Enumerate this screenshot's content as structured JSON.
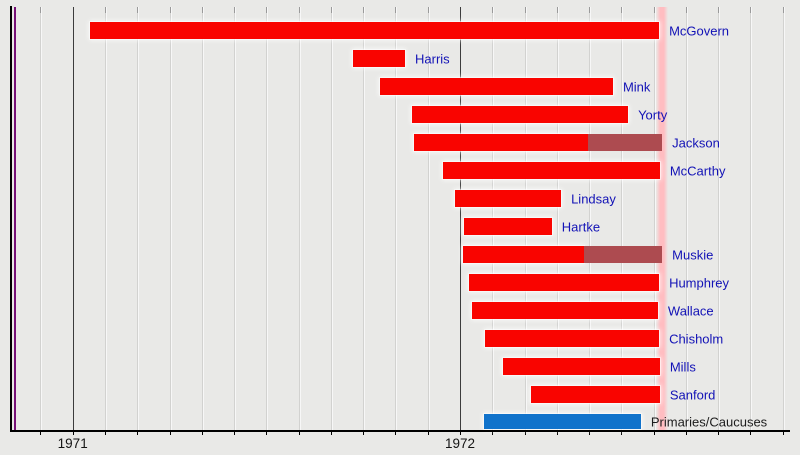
{
  "chart_data": {
    "type": "timeline",
    "title": "",
    "x_axis": {
      "unit": "year",
      "min": 1970.84,
      "max": 1972.85,
      "grid": true,
      "gridline_interval": "monthly",
      "ticks": [
        {
          "value": 1971,
          "label": "1971"
        },
        {
          "value": 1972,
          "label": "1972"
        }
      ]
    },
    "series": [
      {
        "label": "McGovern",
        "start": 1971.045,
        "end": 1972.514,
        "kind": "candidate"
      },
      {
        "label": "Harris",
        "start": 1971.724,
        "end": 1971.858,
        "kind": "candidate"
      },
      {
        "label": "Mink",
        "start": 1971.793,
        "end": 1972.395,
        "kind": "candidate"
      },
      {
        "label": "Yorty",
        "start": 1971.875,
        "end": 1972.434,
        "kind": "candidate"
      },
      {
        "label": "Jackson",
        "start": 1971.881,
        "fade_from": 1972.33,
        "end": 1972.522,
        "kind": "candidate"
      },
      {
        "label": "McCarthy",
        "start": 1971.956,
        "end": 1972.516,
        "kind": "candidate"
      },
      {
        "label": "Lindsay",
        "start": 1971.987,
        "end": 1972.261,
        "kind": "candidate"
      },
      {
        "label": "Hartke",
        "start": 1972.01,
        "end": 1972.237,
        "kind": "candidate"
      },
      {
        "label": "Muskie",
        "start": 1972.008,
        "fade_from": 1972.32,
        "end": 1972.522,
        "kind": "candidate"
      },
      {
        "label": "Humphrey",
        "start": 1972.023,
        "end": 1972.514,
        "kind": "candidate"
      },
      {
        "label": "Wallace",
        "start": 1972.031,
        "end": 1972.511,
        "kind": "candidate"
      },
      {
        "label": "Chisholm",
        "start": 1972.064,
        "end": 1972.514,
        "kind": "candidate"
      },
      {
        "label": "Mills",
        "start": 1972.111,
        "end": 1972.516,
        "kind": "candidate"
      },
      {
        "label": "Sanford",
        "start": 1972.183,
        "end": 1972.516,
        "kind": "candidate"
      },
      {
        "label": "Primaries/Caucuses",
        "start": 1972.062,
        "end": 1972.467,
        "kind": "event"
      }
    ],
    "markers": [
      {
        "name": "start-marker-line",
        "type": "line",
        "at": 1970.85,
        "color": "#760f76"
      },
      {
        "name": "convention-band",
        "type": "band",
        "from": 1972.507,
        "to": 1972.538,
        "color": "#ffbdc1"
      }
    ],
    "colors": {
      "bar_active": "#f90400",
      "bar_suspended": "#ad4b50",
      "bar_event": "#1173cb",
      "candidate_label": "#1212b6",
      "event_label": "#1c1c1c",
      "grid": "#d2d2d0",
      "grid_major": "#3c3c3c",
      "axis": "#000000",
      "background": "#e9e9e7"
    },
    "legend": "none"
  }
}
